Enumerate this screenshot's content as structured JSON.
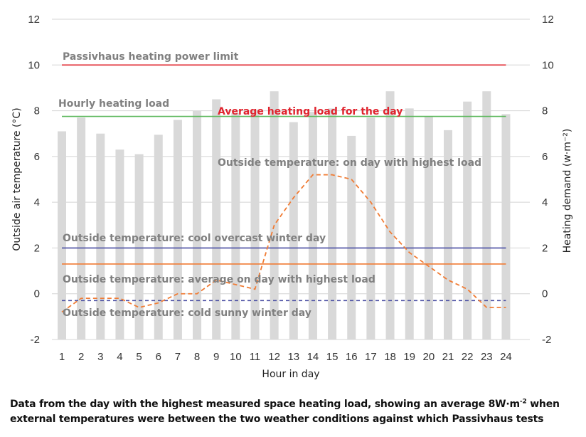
{
  "chart_data": {
    "type": "bar",
    "categories": [
      "1",
      "2",
      "3",
      "4",
      "5",
      "6",
      "7",
      "8",
      "9",
      "10",
      "11",
      "12",
      "13",
      "14",
      "15",
      "16",
      "17",
      "18",
      "19",
      "20",
      "21",
      "22",
      "23",
      "24"
    ],
    "xlabel": "Hour in day",
    "ylabel_left": "Outside air temperature  (°C)",
    "ylabel_right": "Heating demand (w·m⁻²)",
    "ylim": [
      -2,
      12
    ],
    "yticks": [
      "12",
      "10",
      "8",
      "6",
      "4",
      "2",
      "0",
      "-2"
    ],
    "yticks_right": [
      "12",
      "10",
      "8",
      "6",
      "4",
      "2",
      "0",
      "-2"
    ],
    "grid": true,
    "series": [
      {
        "name": "Hourly heating load",
        "kind": "bar",
        "axis": "right",
        "color": "#d9d9d9",
        "values": [
          7.1,
          7.7,
          7.0,
          6.3,
          6.1,
          6.95,
          7.6,
          8.0,
          8.5,
          7.9,
          8.05,
          8.85,
          7.5,
          7.95,
          8.1,
          6.9,
          7.7,
          8.85,
          8.1,
          7.75,
          7.15,
          8.4,
          8.85,
          7.85
        ]
      },
      {
        "name": "Outside temperature: on day with highest load",
        "kind": "dashed-line",
        "axis": "left",
        "color": "#f07c35",
        "values": [
          -0.8,
          -0.2,
          -0.2,
          -0.2,
          -0.6,
          -0.4,
          0.0,
          0.0,
          0.6,
          0.4,
          0.2,
          3.0,
          4.2,
          5.2,
          5.2,
          5.0,
          4.0,
          2.7,
          1.8,
          1.2,
          0.6,
          0.2,
          -0.6,
          -0.6
        ]
      }
    ],
    "reference_lines": [
      {
        "label": "Passivhaus heating power limit",
        "value": 10,
        "color": "#e0242e",
        "style": "solid"
      },
      {
        "label": "Average heating load for the day",
        "value": 7.75,
        "color": "#5cb85c",
        "style": "solid"
      },
      {
        "label": "Outside temperature: cool overcast winter day",
        "value": 2.0,
        "color": "#4b4fa3",
        "style": "solid"
      },
      {
        "label": "Outside temperature: average on day with highest load",
        "value": 1.3,
        "color": "#f07c35",
        "style": "solid"
      },
      {
        "label": "Outside temperature: cold sunny winter day",
        "value": -0.3,
        "color": "#4b4fa3",
        "style": "dashed"
      }
    ],
    "annotations": [
      {
        "text": "Passivhaus heating power limit",
        "color": "#808080"
      },
      {
        "text": "Hourly heating load",
        "color": "#808080"
      },
      {
        "text": "Average heating load for the day",
        "color": "#e0242e"
      },
      {
        "text": "Outside temperature: on day with highest load",
        "color": "#808080"
      },
      {
        "text": "Outside temperature: cool overcast winter day",
        "color": "#808080"
      },
      {
        "text": "Outside temperature: average on day with highest load",
        "color": "#808080"
      },
      {
        "text": "Outside temperature: cold sunny winter day",
        "color": "#808080"
      }
    ]
  },
  "caption": {
    "line1_a": "Data from the day with the highest measured space heating load, showing an average 8W·m",
    "line1_sup": "-2",
    "line1_b": " when",
    "line2": "external temperatures were between the two weather conditions against which Passivhaus tests"
  }
}
